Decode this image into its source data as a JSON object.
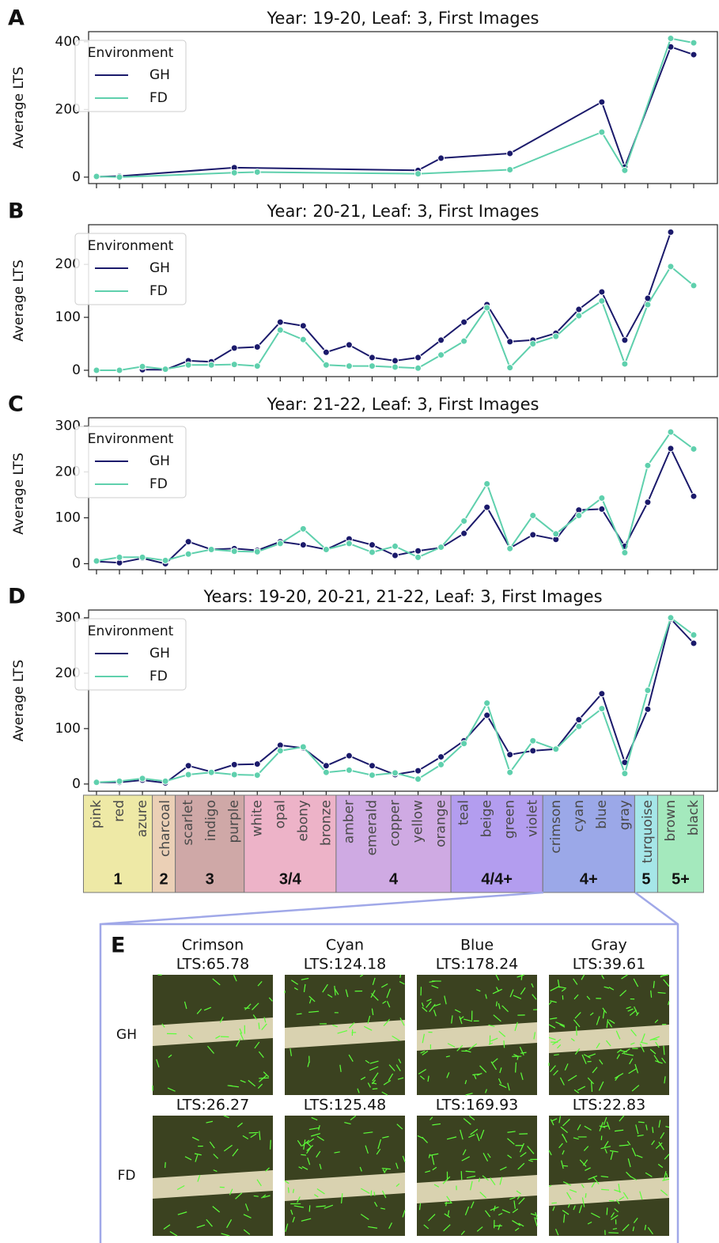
{
  "chart_data": [
    {
      "type": "line",
      "panel_label": "A",
      "title": "Year: 19-20, Leaf: 3, First Images",
      "ylabel": "Average LTS",
      "legend_title": "Environment",
      "legend": "upper left",
      "ylim": [
        -19,
        430
      ],
      "yticks": [
        0,
        200,
        400
      ],
      "series": [
        {
          "name": "GH",
          "color": "#1b1a6b",
          "categories": [
            "pink",
            "red",
            "purple",
            "yellow",
            "orange",
            "green",
            "blue",
            "gray",
            "brown",
            "black"
          ],
          "values": [
            1,
            3,
            28,
            20,
            56,
            70,
            222,
            30,
            385,
            362
          ]
        },
        {
          "name": "FD",
          "color": "#5fd0ad",
          "categories": [
            "pink",
            "red",
            "purple",
            "white",
            "yellow",
            "green",
            "blue",
            "gray",
            "brown",
            "black"
          ],
          "values": [
            2,
            0,
            13,
            15,
            10,
            22,
            133,
            20,
            410,
            397
          ]
        }
      ]
    },
    {
      "type": "line",
      "panel_label": "B",
      "title": "Year: 20-21, Leaf: 3, First Images",
      "ylabel": "Average LTS",
      "legend_title": "Environment",
      "legend": "upper left",
      "ylim": [
        -12,
        275
      ],
      "yticks": [
        0,
        100,
        200
      ],
      "series": [
        {
          "name": "GH",
          "color": "#1b1a6b",
          "values": [
            null,
            null,
            1,
            1,
            18,
            16,
            42,
            44,
            91,
            84,
            34,
            48,
            24,
            18,
            24,
            57,
            91,
            124,
            54,
            57,
            70,
            115,
            148,
            57,
            136,
            261,
            null
          ]
        },
        {
          "name": "FD",
          "color": "#5fd0ad",
          "values": [
            0,
            0,
            7,
            2,
            10,
            10,
            11,
            8,
            76,
            58,
            10,
            8,
            8,
            6,
            4,
            29,
            55,
            118,
            5,
            50,
            64,
            103,
            131,
            12,
            124,
            196,
            160
          ]
        }
      ]
    },
    {
      "type": "line",
      "panel_label": "C",
      "title": "Year: 21-22, Leaf: 3, First Images",
      "ylabel": "Average LTS",
      "legend_title": "Environment",
      "legend": "upper left",
      "ylim": [
        -13,
        318
      ],
      "yticks": [
        0,
        100,
        200,
        300
      ],
      "series": [
        {
          "name": "GH",
          "color": "#1b1a6b",
          "values": [
            5,
            2,
            12,
            0,
            48,
            31,
            33,
            29,
            48,
            41,
            31,
            54,
            41,
            18,
            28,
            35,
            66,
            123,
            34,
            63,
            53,
            117,
            119,
            38,
            134,
            251,
            147
          ]
        },
        {
          "name": "FD",
          "color": "#5fd0ad",
          "values": [
            6,
            14,
            14,
            7,
            21,
            31,
            27,
            26,
            44,
            76,
            31,
            44,
            25,
            38,
            14,
            36,
            93,
            174,
            33,
            105,
            65,
            105,
            143,
            24,
            214,
            287,
            250
          ]
        }
      ]
    },
    {
      "type": "line",
      "panel_label": "D",
      "title": "Years: 19-20, 20-21, 21-22, Leaf: 3, First Images",
      "ylabel": "Average LTS",
      "legend_title": "Environment",
      "legend": "upper left",
      "ylim": [
        -13,
        314
      ],
      "yticks": [
        0,
        100,
        200,
        300
      ],
      "series": [
        {
          "name": "GH",
          "color": "#1b1a6b",
          "values": [
            3,
            3,
            7,
            2,
            33,
            22,
            35,
            36,
            70,
            65,
            33,
            51,
            33,
            17,
            24,
            49,
            78,
            124,
            53,
            60,
            63,
            116,
            163,
            39,
            135,
            298,
            254
          ]
        },
        {
          "name": "FD",
          "color": "#5fd0ad",
          "values": [
            3,
            5,
            10,
            5,
            17,
            21,
            17,
            16,
            60,
            67,
            21,
            25,
            16,
            20,
            9,
            35,
            73,
            146,
            21,
            78,
            63,
            104,
            136,
            19,
            169,
            300,
            269
          ]
        }
      ]
    }
  ],
  "category_groups": [
    {
      "label": "1",
      "color": "#eee9a6",
      "categories": [
        "pink",
        "red",
        "azure"
      ]
    },
    {
      "label": "2",
      "color": "#ebd0b6",
      "categories": [
        "charcoal"
      ]
    },
    {
      "label": "3",
      "color": "#cfa8a7",
      "categories": [
        "scarlet",
        "indigo",
        "purple"
      ]
    },
    {
      "label": "3/4",
      "color": "#edb3c8",
      "categories": [
        "white",
        "opal",
        "ebony",
        "bronze"
      ]
    },
    {
      "label": "4",
      "color": "#cfaae3",
      "categories": [
        "amber",
        "emerald",
        "copper",
        "yellow",
        "orange"
      ]
    },
    {
      "label": "4/4+",
      "color": "#b39def",
      "categories": [
        "teal",
        "beige",
        "green",
        "violet"
      ]
    },
    {
      "label": "4+",
      "color": "#9ba8e8",
      "categories": [
        "crimson",
        "cyan",
        "blue",
        "gray"
      ]
    },
    {
      "label": "5",
      "color": "#a5e6e8",
      "categories": [
        "turquoise"
      ]
    },
    {
      "label": "5+",
      "color": "#a4e9bd",
      "categories": [
        "brown",
        "black"
      ]
    }
  ],
  "panel_e": {
    "label": "E",
    "columns": [
      "Crimson",
      "Cyan",
      "Blue",
      "Gray"
    ],
    "rows": [
      {
        "name": "GH",
        "lts_labels": [
          "LTS:65.78",
          "LTS:124.18",
          "LTS:178.24",
          "LTS:39.61"
        ]
      },
      {
        "name": "FD",
        "lts_labels": [
          "LTS:26.27",
          "LTS:125.48",
          "LTS:169.93",
          "LTS:22.83"
        ]
      }
    ]
  }
}
